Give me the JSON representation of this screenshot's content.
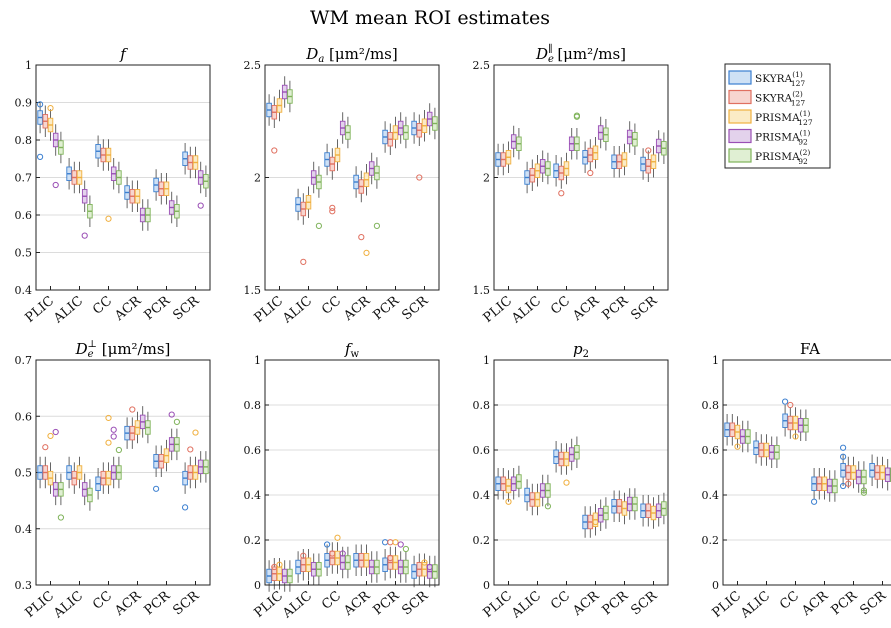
{
  "figure": {
    "title": "WM mean ROI estimates"
  },
  "legend": {
    "placement": "right",
    "entries": [
      {
        "name": "SKYRA",
        "sup": "(1)",
        "sub": "127",
        "color": "#3b7fd0",
        "fill": "#cfe1f5"
      },
      {
        "name": "SKYRA",
        "sup": "(2)",
        "sub": "127",
        "color": "#e07060",
        "fill": "#f7d5cf"
      },
      {
        "name": "PRISMA",
        "sup": "(1)",
        "sub": "127",
        "color": "#f0b040",
        "fill": "#fbebc6"
      },
      {
        "name": "PRISMA",
        "sup": "(1)",
        "sub": "92",
        "color": "#9a4fb5",
        "fill": "#e3d2ec"
      },
      {
        "name": "PRISMA",
        "sup": "(2)",
        "sub": "92",
        "color": "#7fb35a",
        "fill": "#e0efd3"
      }
    ]
  },
  "categories": [
    "PLIC",
    "ALIC",
    "CC",
    "ACR",
    "PCR",
    "SCR"
  ],
  "chart_data": [
    {
      "id": "f",
      "type": "box",
      "title": "f",
      "ylim": [
        0.4,
        1.0
      ],
      "yticks": [
        "0.4",
        "0.5",
        "0.6",
        "0.7",
        "0.8",
        "0.9",
        "1"
      ],
      "ytick_values": [
        0.4,
        0.5,
        0.6,
        0.7,
        0.8,
        0.9,
        1.0
      ],
      "grid": true,
      "medians": [
        [
          0.86,
          0.85,
          0.84,
          0.8,
          0.78
        ],
        [
          0.71,
          0.7,
          0.7,
          0.65,
          0.61
        ],
        [
          0.77,
          0.76,
          0.76,
          0.71,
          0.7
        ],
        [
          0.66,
          0.65,
          0.65,
          0.6,
          0.6
        ],
        [
          0.68,
          0.67,
          0.67,
          0.62,
          0.61
        ],
        [
          0.75,
          0.74,
          0.74,
          0.7,
          0.69
        ]
      ],
      "outliers": [
        [
          [
            0.755,
            0.895
          ],
          [],
          [
            0.885
          ],
          [
            0.68
          ],
          []
        ],
        [
          [],
          [],
          [],
          [
            0.545
          ],
          []
        ],
        [
          [],
          [],
          [
            0.59
          ],
          [],
          []
        ],
        [
          [],
          [],
          [],
          [],
          []
        ],
        [
          [],
          [],
          [],
          [],
          []
        ],
        [
          [],
          [],
          [],
          [
            0.625
          ],
          []
        ]
      ]
    },
    {
      "id": "Da",
      "type": "box",
      "title": "Da [μm²/ms]",
      "ylim": [
        1.5,
        2.5
      ],
      "yticks": [
        "1.5",
        "2",
        "2.5"
      ],
      "ytick_values": [
        1.5,
        2.0,
        2.5
      ],
      "grid": true,
      "medians": [
        [
          2.3,
          2.29,
          2.32,
          2.38,
          2.36
        ],
        [
          1.88,
          1.86,
          1.89,
          2.0,
          1.98
        ],
        [
          2.08,
          2.06,
          2.1,
          2.22,
          2.2
        ],
        [
          1.98,
          1.96,
          1.99,
          2.04,
          2.02
        ],
        [
          2.18,
          2.17,
          2.2,
          2.22,
          2.2
        ],
        [
          2.22,
          2.21,
          2.23,
          2.26,
          2.24
        ]
      ],
      "outliers": [
        [
          [],
          [
            2.12
          ],
          [],
          [],
          []
        ],
        [
          [],
          [
            1.625
          ],
          [],
          [],
          [
            1.785
          ]
        ],
        [
          [],
          [
            1.865,
            1.85
          ],
          [],
          [],
          []
        ],
        [
          [],
          [
            1.735
          ],
          [
            1.665
          ],
          [],
          [
            1.785
          ]
        ],
        [
          [],
          [],
          [],
          [],
          []
        ],
        [
          [],
          [
            2.0
          ],
          [],
          [],
          []
        ]
      ]
    },
    {
      "id": "De_par",
      "type": "box",
      "title": "De∥ [μm²/ms]",
      "ylim": [
        1.5,
        2.5
      ],
      "yticks": [
        "1.5",
        "2",
        "2.5"
      ],
      "ytick_values": [
        1.5,
        2.0,
        2.5
      ],
      "grid": true,
      "medians": [
        [
          2.08,
          2.08,
          2.09,
          2.16,
          2.15
        ],
        [
          2.0,
          2.01,
          2.03,
          2.05,
          2.04
        ],
        [
          2.03,
          2.02,
          2.04,
          2.15,
          2.15
        ],
        [
          2.09,
          2.1,
          2.11,
          2.2,
          2.19
        ],
        [
          2.07,
          2.07,
          2.08,
          2.18,
          2.17
        ],
        [
          2.06,
          2.05,
          2.07,
          2.14,
          2.13
        ]
      ],
      "outliers": [
        [
          [],
          [],
          [],
          [],
          []
        ],
        [
          [],
          [],
          [],
          [],
          []
        ],
        [
          [],
          [
            1.93
          ],
          [],
          [],
          [
            2.27,
            2.275
          ]
        ],
        [
          [],
          [
            2.02
          ],
          [],
          [],
          []
        ],
        [
          [],
          [],
          [],
          [],
          []
        ],
        [
          [],
          [
            2.12
          ],
          [],
          [],
          []
        ]
      ]
    },
    {
      "id": "De_perp",
      "type": "box",
      "title": "De⊥ [μm²/ms]",
      "ylim": [
        0.3,
        0.7
      ],
      "yticks": [
        "0.3",
        "0.4",
        "0.5",
        "0.6",
        "0.7"
      ],
      "ytick_values": [
        0.3,
        0.4,
        0.5,
        0.6,
        0.7
      ],
      "grid": true,
      "medians": [
        [
          0.5,
          0.5,
          0.49,
          0.47,
          0.47
        ],
        [
          0.5,
          0.49,
          0.5,
          0.47,
          0.46
        ],
        [
          0.48,
          0.49,
          0.49,
          0.5,
          0.5
        ],
        [
          0.57,
          0.57,
          0.58,
          0.59,
          0.58
        ],
        [
          0.52,
          0.52,
          0.53,
          0.55,
          0.55
        ],
        [
          0.49,
          0.5,
          0.5,
          0.51,
          0.51
        ]
      ],
      "outliers": [
        [
          [],
          [
            0.545
          ],
          [
            0.565
          ],
          [
            0.572
          ],
          [
            0.42
          ]
        ],
        [
          [],
          [],
          [],
          [],
          []
        ],
        [
          [],
          [],
          [
            0.597,
            0.553
          ],
          [
            0.576,
            0.564
          ],
          [
            0.54
          ]
        ],
        [
          [],
          [
            0.612
          ],
          [],
          [],
          []
        ],
        [
          [
            0.471
          ],
          [],
          [],
          [
            0.603
          ],
          [
            0.59
          ]
        ],
        [
          [
            0.438
          ],
          [
            0.541
          ],
          [
            0.571
          ],
          [],
          []
        ]
      ]
    },
    {
      "id": "fw",
      "type": "box",
      "title": "fw",
      "ylim": [
        0,
        1
      ],
      "yticks": [
        "0",
        "0.2",
        "0.4",
        "0.6",
        "0.8",
        "1"
      ],
      "ytick_values": [
        0,
        0.2,
        0.4,
        0.6,
        0.8,
        1.0
      ],
      "grid": true,
      "medians": [
        [
          0.04,
          0.05,
          0.05,
          0.04,
          0.04
        ],
        [
          0.08,
          0.09,
          0.09,
          0.07,
          0.07
        ],
        [
          0.11,
          0.12,
          0.12,
          0.1,
          0.1
        ],
        [
          0.11,
          0.11,
          0.11,
          0.08,
          0.08
        ],
        [
          0.09,
          0.1,
          0.1,
          0.08,
          0.08
        ],
        [
          0.06,
          0.07,
          0.07,
          0.06,
          0.06
        ]
      ],
      "outliers": [
        [
          [],
          [
            0.08
          ],
          [
            0.09
          ],
          [],
          []
        ],
        [
          [],
          [
            0.13
          ],
          [],
          [],
          []
        ],
        [
          [
            0.18
          ],
          [
            0.14
          ],
          [
            0.21
          ],
          [
            0.14
          ],
          []
        ],
        [
          [],
          [],
          [],
          [],
          []
        ],
        [
          [
            0.19
          ],
          [
            0.12,
            0.19
          ],
          [
            0.19
          ],
          [
            0.18
          ],
          [
            0.16
          ]
        ],
        [
          [],
          [],
          [
            0.1
          ],
          [
            0.08
          ],
          []
        ]
      ]
    },
    {
      "id": "p2",
      "type": "box",
      "title": "p2",
      "ylim": [
        0,
        1
      ],
      "yticks": [
        "0",
        "0.2",
        "0.4",
        "0.6",
        "0.8",
        "1"
      ],
      "ytick_values": [
        0,
        0.2,
        0.4,
        0.6,
        0.8,
        1.0
      ],
      "grid": true,
      "medians": [
        [
          0.45,
          0.45,
          0.44,
          0.45,
          0.46
        ],
        [
          0.4,
          0.38,
          0.38,
          0.42,
          0.42
        ],
        [
          0.57,
          0.56,
          0.56,
          0.58,
          0.59
        ],
        [
          0.28,
          0.28,
          0.29,
          0.31,
          0.32
        ],
        [
          0.35,
          0.35,
          0.34,
          0.36,
          0.36
        ],
        [
          0.33,
          0.33,
          0.32,
          0.33,
          0.34
        ]
      ],
      "outliers": [
        [
          [],
          [],
          [
            0.37
          ],
          [],
          []
        ],
        [
          [],
          [],
          [],
          [],
          [
            0.35
          ]
        ],
        [
          [],
          [],
          [
            0.455
          ],
          [],
          []
        ],
        [
          [],
          [],
          [
            0.28
          ],
          [],
          []
        ],
        [
          [],
          [],
          [],
          [],
          []
        ],
        [
          [],
          [],
          [],
          [],
          []
        ]
      ]
    },
    {
      "id": "FA",
      "type": "box",
      "title": "FA",
      "ylim": [
        0,
        1
      ],
      "yticks": [
        "0",
        "0.2",
        "0.4",
        "0.6",
        "0.8",
        "1"
      ],
      "ytick_values": [
        0,
        0.2,
        0.4,
        0.6,
        0.8,
        1.0
      ],
      "grid": true,
      "medians": [
        [
          0.69,
          0.69,
          0.68,
          0.66,
          0.66
        ],
        [
          0.61,
          0.6,
          0.6,
          0.59,
          0.59
        ],
        [
          0.73,
          0.72,
          0.72,
          0.71,
          0.71
        ],
        [
          0.45,
          0.45,
          0.45,
          0.44,
          0.44
        ],
        [
          0.51,
          0.5,
          0.5,
          0.48,
          0.48
        ],
        [
          0.51,
          0.5,
          0.5,
          0.49,
          0.49
        ]
      ],
      "outliers": [
        [
          [],
          [],
          [
            0.615
          ],
          [],
          []
        ],
        [
          [],
          [],
          [],
          [],
          []
        ],
        [
          [
            0.815
          ],
          [
            0.8
          ],
          [
            0.66
          ],
          [],
          []
        ],
        [
          [
            0.37
          ],
          [],
          [],
          [],
          []
        ],
        [
          [
            0.61,
            0.57,
            0.44
          ],
          [
            0.45
          ],
          [],
          [],
          [
            0.42,
            0.41
          ]
        ],
        [
          [],
          [],
          [],
          [],
          []
        ]
      ]
    }
  ]
}
